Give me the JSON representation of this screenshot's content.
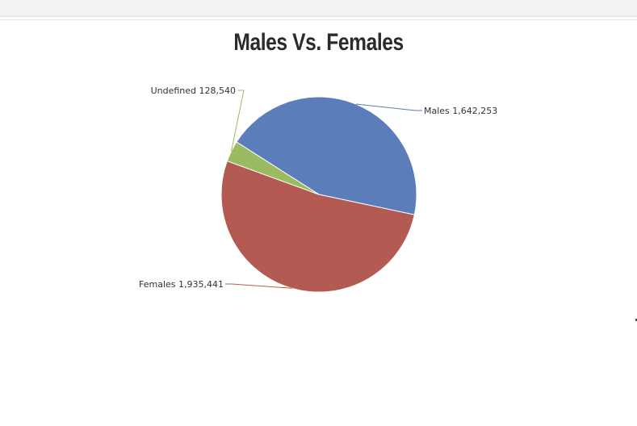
{
  "chart_data": {
    "type": "pie",
    "title": "Males Vs. Females",
    "slices": [
      {
        "name": "Males",
        "value": 1642253,
        "value_label": "1,642,253",
        "color": "#5b7db9"
      },
      {
        "name": "Females",
        "value": 1935441,
        "value_label": "1,935,441",
        "color": "#b35b52"
      },
      {
        "name": "Undefined",
        "value": 128540,
        "value_label": "128,540",
        "color": "#9bbb62"
      }
    ],
    "start_angle_deg": -57.5,
    "direction": "clockwise",
    "legend": "none",
    "data_labels": "outside-with-leader-lines"
  }
}
